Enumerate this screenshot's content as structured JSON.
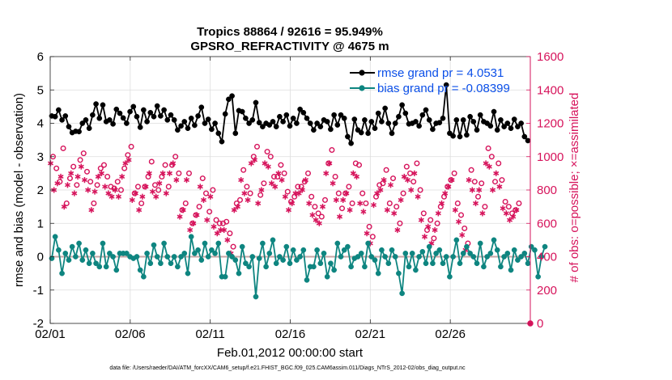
{
  "chart_data": {
    "type": "line",
    "title": "Tropics 88864 / 92616 = 95.949%",
    "subtitle": "GPSRO_REFRACTIVITY @ 4675 m",
    "xlabel": "Feb.01,2012 00:00:00 start",
    "ylabel_left": "rmse and bias (model - observation)",
    "ylabel_right": "# of obs: o=possible; ×=assimilated",
    "footnote": "data file: /Users/raeder/DAI/ATM_forcXX/CAM6_setup/f.e21.FHIST_BGC.f09_025.CAM6assim.011/Diags_NTrS_2012-02/obs_diag_output.nc",
    "x_tick_labels": [
      "02/01",
      "02/06",
      "02/11",
      "02/16",
      "02/21",
      "02/26"
    ],
    "x_tick_days": [
      0,
      5,
      10,
      15,
      20,
      25
    ],
    "xlim": [
      0,
      30
    ],
    "ylim_left": [
      -2,
      6
    ],
    "yticks_left": [
      "-2",
      "-1",
      "0",
      "1",
      "2",
      "3",
      "4",
      "5",
      "6"
    ],
    "ylim_right": [
      0,
      1600
    ],
    "yticks_right": [
      "0",
      "200",
      "400",
      "600",
      "800",
      "1000",
      "1200",
      "1400",
      "1600"
    ],
    "zero_line": 0,
    "colors": {
      "rmse": "#000000",
      "bias": "#0e8580",
      "obs": "#d6135b",
      "legend_text": "#0b4fe8",
      "zero_line": "#c8a6a6",
      "grid": "#dddddd"
    },
    "legend": [
      {
        "name": "rmse grand pr = 4.0531",
        "color": "#000000"
      },
      {
        "name": "bias grand pr = -0.08399",
        "color": "#0e8580"
      }
    ],
    "series": [
      {
        "name": "rmse",
        "axis": "left",
        "values": [
          4.22,
          4.2,
          4.4,
          4.1,
          4.22,
          3.9,
          3.72,
          3.76,
          3.75,
          4.0,
          4.1,
          3.85,
          4.25,
          4.58,
          4.15,
          4.55,
          4.05,
          4.1,
          3.98,
          4.42,
          4.3,
          4.16,
          4.0,
          4.35,
          4.5,
          4.2,
          3.88,
          4.4,
          4.05,
          4.32,
          4.2,
          4.52,
          4.22,
          4.4,
          4.1,
          4.25,
          4.1,
          3.8,
          3.92,
          4.05,
          3.85,
          4.15,
          3.94,
          4.22,
          4.48,
          4.0,
          4.12,
          3.82,
          4.0,
          3.7,
          3.45,
          4.28,
          4.72,
          4.82,
          3.7,
          4.38,
          4.35,
          4.15,
          4.0,
          4.1,
          4.62,
          4.02,
          3.9,
          4.0,
          3.95,
          4.05,
          3.9,
          4.2,
          4.05,
          4.25,
          3.92,
          4.15,
          4.0,
          4.42,
          4.32,
          4.15,
          4.0,
          3.8,
          4.0,
          3.9,
          4.1,
          4.05,
          3.82,
          4.25,
          3.95,
          4.25,
          4.15,
          3.6,
          3.4,
          4.12,
          3.8,
          3.72,
          4.1,
          3.7,
          4.05,
          3.85,
          4.3,
          4.05,
          4.45,
          4.0,
          3.7,
          4.0,
          4.2,
          4.55,
          4.3,
          3.98,
          4.0,
          4.05,
          3.92,
          4.25,
          4.4,
          4.1,
          3.82,
          4.0,
          4.02,
          4.15,
          5.15,
          3.7,
          3.62,
          4.1,
          3.6,
          4.1,
          3.65,
          4.2,
          4.05,
          3.8,
          4.25,
          4.05,
          4.0,
          3.92,
          4.35,
          3.8,
          4.1,
          3.9,
          4.0,
          3.85,
          4.12,
          3.9,
          4.0,
          3.6,
          3.48
        ]
      },
      {
        "name": "bias",
        "axis": "left",
        "values": [
          -0.05,
          0.6,
          0.2,
          -0.5,
          0.1,
          -0.1,
          0.3,
          0.0,
          0.4,
          -0.1,
          0.2,
          -0.2,
          0.1,
          -0.2,
          -0.3,
          0.4,
          -0.3,
          0.1,
          0.0,
          -0.4,
          0.1,
          0.1,
          0.1,
          0.0,
          -0.05,
          0.0,
          -0.4,
          -0.6,
          0.1,
          -0.2,
          0.35,
          0.0,
          -0.2,
          0.4,
          0.0,
          -0.2,
          0.0,
          -0.3,
          0.0,
          0.1,
          -0.5,
          0.6,
          0.1,
          0.2,
          -0.1,
          0.4,
          0.0,
          0.2,
          0.1,
          0.4,
          -0.6,
          -0.6,
          0.1,
          0.0,
          -0.1,
          -0.5,
          0.3,
          -0.2,
          -0.3,
          0.0,
          -1.2,
          -0.05,
          0.4,
          -0.3,
          0.1,
          0.5,
          -0.2,
          0.0,
          -0.1,
          0.3,
          -0.2,
          0.2,
          -0.1,
          0.0,
          0.2,
          -0.7,
          -0.3,
          -0.3,
          0.2,
          -0.2,
          0.1,
          -0.6,
          -0.2,
          -0.4,
          0.4,
          0.0,
          0.2,
          0.3,
          -0.3,
          -0.05,
          0.0,
          0.1,
          -0.3,
          0.4,
          0.0,
          -0.1,
          -0.5,
          0.2,
          0.0,
          -0.2,
          0.2,
          0.0,
          -0.5,
          -1.1,
          0.1,
          -0.3,
          0.1,
          -0.4,
          0.0,
          0.15,
          -0.2,
          0.3,
          -0.2,
          0.1,
          0.2,
          -0.2,
          0.0,
          -0.6,
          0.0,
          0.5,
          -0.2,
          0.1,
          0.3,
          0.1,
          0.0,
          -0.2,
          0.4,
          -0.3,
          0.0,
          0.1,
          0.5,
          0.2,
          -0.3,
          0.0,
          0.1,
          -0.4,
          0.2,
          -0.1,
          0.0,
          0.1,
          -0.2,
          0.3,
          0.2,
          -0.6,
          0.0,
          0.3
        ]
      },
      {
        "name": "possible",
        "axis": "right",
        "marker": "circle",
        "values": [
          1000,
          930,
          850,
          1050,
          720,
          870,
          940,
          830,
          980,
          1020,
          910,
          850,
          720,
          830,
          930,
          950,
          880,
          820,
          810,
          850,
          800,
          930,
          1010,
          1060,
          780,
          820,
          720,
          820,
          880,
          970,
          830,
          800,
          880,
          950,
          820,
          950,
          1000,
          900,
          680,
          720,
          900,
          600,
          650,
          700,
          870,
          780,
          670,
          800,
          620,
          600,
          600,
          610,
          540,
          460,
          720,
          740,
          920,
          820,
          780,
          1000,
          1060,
          770,
          840,
          1030,
          1000,
          880,
          880,
          950,
          900,
          790,
          730,
          760,
          820,
          820,
          850,
          900,
          760,
          700,
          660,
          640,
          740,
          960,
          1040,
          880,
          780,
          690,
          780,
          820,
          720,
          960,
          950,
          780,
          720,
          580,
          520,
          760,
          830,
          840,
          920,
          720,
          870,
          700,
          600,
          780,
          940,
          900,
          850,
          960,
          800,
          660,
          560,
          620,
          510,
          600,
          700,
          760,
          820,
          860,
          900,
          720,
          650,
          570,
          480,
          920,
          850,
          760,
          840,
          700,
          1050,
          1000,
          850,
          960,
          860,
          730,
          700,
          660,
          680,
          720
        ]
      },
      {
        "name": "assimilated",
        "axis": "right",
        "marker": "asterisk",
        "values": [
          960,
          800,
          840,
          880,
          700,
          830,
          900,
          780,
          880,
          940,
          860,
          800,
          680,
          790,
          880,
          900,
          820,
          780,
          760,
          800,
          760,
          880,
          960,
          980,
          740,
          780,
          680,
          760,
          820,
          900,
          790,
          760,
          840,
          900,
          780,
          900,
          960,
          860,
          640,
          680,
          860,
          560,
          600,
          650,
          820,
          740,
          620,
          760,
          580,
          540,
          560,
          560,
          500,
          420,
          680,
          700,
          860,
          780,
          740,
          960,
          980,
          720,
          800,
          960,
          940,
          840,
          820,
          900,
          860,
          760,
          680,
          720,
          780,
          780,
          800,
          860,
          720,
          650,
          620,
          600,
          700,
          900,
          960,
          840,
          740,
          640,
          740,
          780,
          680,
          900,
          880,
          720,
          670,
          540,
          480,
          710,
          780,
          800,
          860,
          680,
          830,
          660,
          560,
          740,
          880,
          860,
          800,
          900,
          760,
          620,
          520,
          580,
          480,
          560,
          660,
          720,
          780,
          820,
          860,
          680,
          610,
          530,
          440,
          860,
          800,
          720,
          800,
          660,
          960,
          940,
          800,
          900,
          820,
          690,
          660,
          620,
          640,
          680
        ]
      }
    ]
  }
}
